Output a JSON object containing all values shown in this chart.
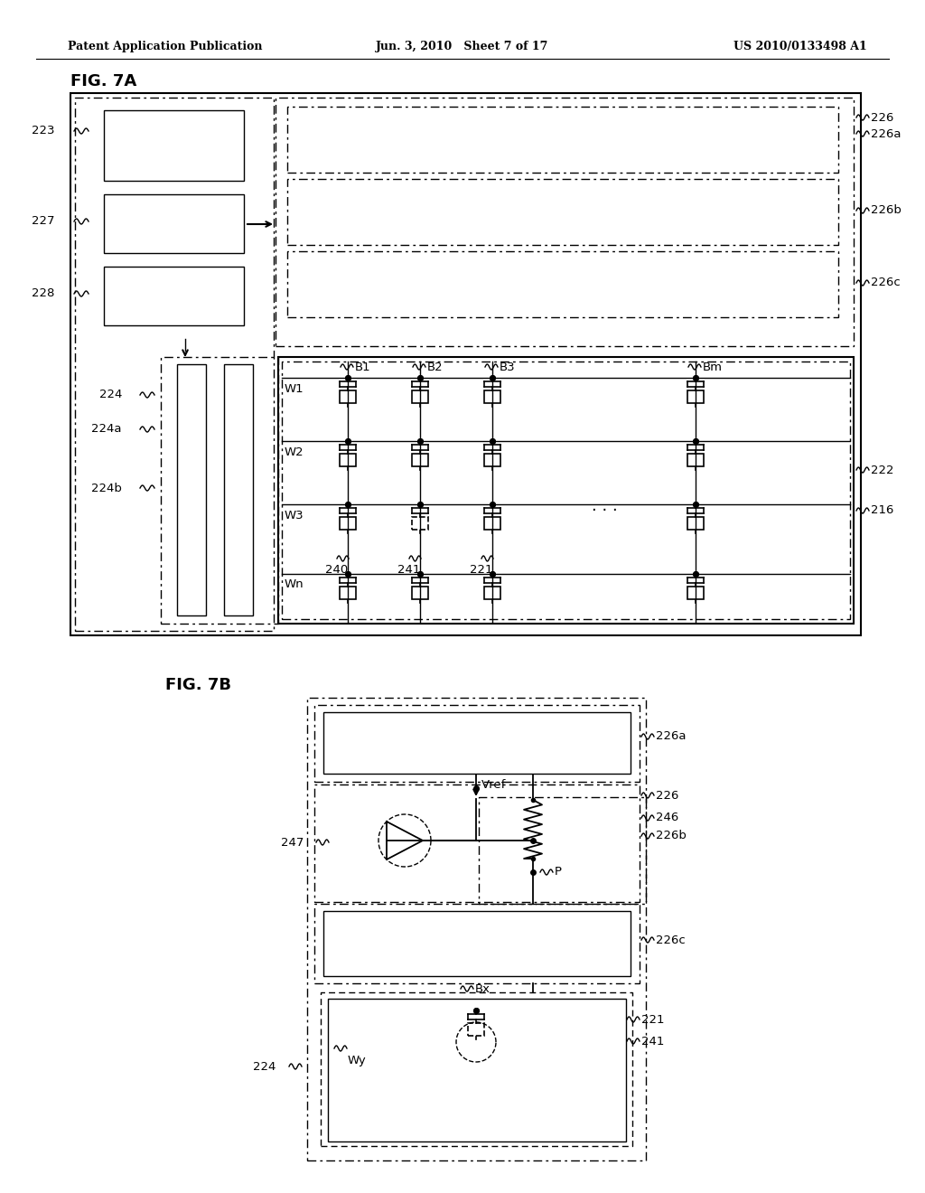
{
  "bg_color": "#ffffff",
  "header_left": "Patent Application Publication",
  "header_center": "Jun. 3, 2010   Sheet 7 of 17",
  "header_right": "US 2010/0133498 A1",
  "fig7a_label": "FIG. 7A",
  "fig7b_label": "FIG. 7B",
  "line_color": "#000000"
}
